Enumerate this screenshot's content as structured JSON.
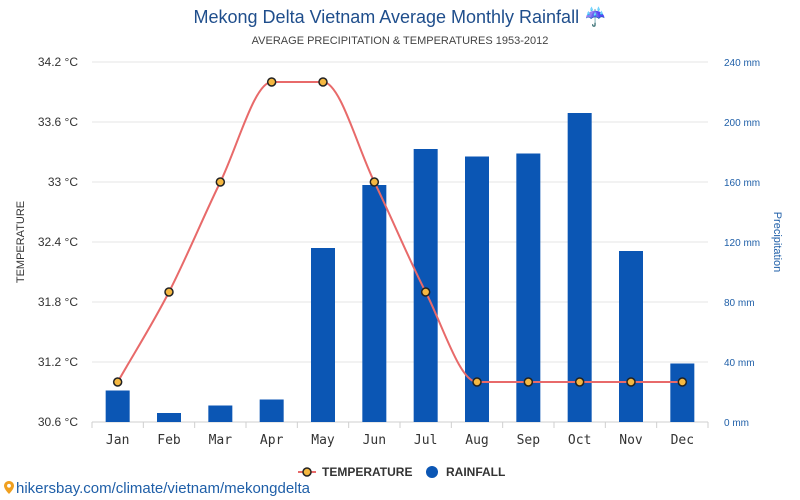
{
  "chart_data": {
    "type": "bar+line",
    "title": "Mekong Delta Vietnam Average Monthly Rainfall ☔",
    "subtitle": "AVERAGE PRECIPITATION & TEMPERATURES 1953-2012",
    "categories": [
      "Jan",
      "Feb",
      "Mar",
      "Apr",
      "May",
      "Jun",
      "Jul",
      "Aug",
      "Sep",
      "Oct",
      "Nov",
      "Dec"
    ],
    "series": [
      {
        "name": "TEMPERATURE",
        "type": "line",
        "axis": "left",
        "color": "#e86a6a",
        "values": [
          31.0,
          31.9,
          33.0,
          34.0,
          34.0,
          33.0,
          31.9,
          31.0,
          31.0,
          31.0,
          31.0,
          31.0
        ]
      },
      {
        "name": "RAINFALL",
        "type": "bar",
        "axis": "right",
        "color": "#0b56b4",
        "values": [
          21,
          6,
          11,
          15,
          116,
          158,
          182,
          177,
          179,
          206,
          114,
          39
        ]
      }
    ],
    "left_axis": {
      "label": "TEMPERATURE",
      "ticks": [
        "30.6 °C",
        "31.2 °C",
        "31.8 °C",
        "32.4 °C",
        "33 °C",
        "33.6 °C",
        "34.2 °C"
      ],
      "min": 30.6,
      "max": 34.2
    },
    "right_axis": {
      "label": "Precipitation",
      "ticks": [
        "0 mm",
        "40 mm",
        "80 mm",
        "120 mm",
        "160 mm",
        "200 mm",
        "240 mm"
      ],
      "min": 0,
      "max": 240
    },
    "grid": true,
    "legend_position": "bottom-center"
  },
  "footer": {
    "link_text": "hikersbay.com/climate/vietnam/mekongdelta"
  }
}
